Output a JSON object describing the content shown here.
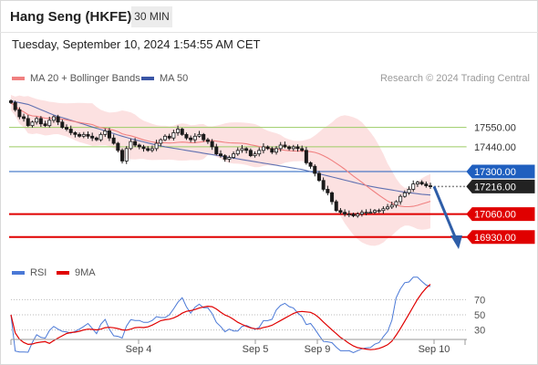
{
  "header": {
    "instrument": "Hang Seng (HKFE)",
    "timeframe": "30 MIN",
    "timestamp": "Tuesday, September 10, 2024 1:54:55 AM CET"
  },
  "legend": {
    "ma20": "MA 20 + Bollinger Bands",
    "ma50": "MA 50",
    "rsi": "RSI",
    "ma9": "9MA",
    "credit": "Research © 2024 Trading Central"
  },
  "colors": {
    "ma20": "#f08080",
    "bollinger_fill": "#fcdcdc",
    "ma50": "#3a55a5",
    "candles": "#1a1a1a",
    "resistance": "#9ccc65",
    "pivot": "#1f5fbf",
    "support": "#e00000",
    "price_tag": "#222222",
    "rsi": "#4a78d6",
    "rsi_ma9": "#e00000",
    "arrow": "#2f5ea8"
  },
  "chart_data": {
    "type": "candlestick",
    "x_tick_labels": [
      "Sep 4",
      "Sep 5",
      "Sep 9",
      "Sep 10"
    ],
    "price_axis": {
      "min": 16800,
      "max": 17780
    },
    "levels": [
      {
        "label": "17550.00",
        "value": 17550,
        "kind": "resistance"
      },
      {
        "label": "17440.00",
        "value": 17440,
        "kind": "resistance"
      },
      {
        "label": "17300.00",
        "value": 17300,
        "kind": "pivot"
      },
      {
        "label": "17216.00",
        "value": 17216,
        "kind": "last"
      },
      {
        "label": "17060.00",
        "value": 17060,
        "kind": "support"
      },
      {
        "label": "16930.00",
        "value": 16930,
        "kind": "support"
      }
    ],
    "close": [
      17690,
      17650,
      17610,
      17600,
      17560,
      17580,
      17600,
      17570,
      17560,
      17590,
      17610,
      17580,
      17550,
      17540,
      17520,
      17510,
      17500,
      17510,
      17500,
      17490,
      17480,
      17510,
      17530,
      17490,
      17460,
      17420,
      17360,
      17430,
      17470,
      17450,
      17440,
      17430,
      17420,
      17430,
      17460,
      17480,
      17500,
      17490,
      17520,
      17540,
      17510,
      17490,
      17480,
      17500,
      17510,
      17480,
      17470,
      17440,
      17400,
      17390,
      17370,
      17380,
      17400,
      17420,
      17430,
      17420,
      17390,
      17400,
      17420,
      17440,
      17430,
      17410,
      17430,
      17450,
      17440,
      17430,
      17440,
      17430,
      17420,
      17350,
      17330,
      17290,
      17250,
      17200,
      17180,
      17130,
      17080,
      17070,
      17060,
      17060,
      17050,
      17060,
      17070,
      17070,
      17070,
      17080,
      17080,
      17090,
      17100,
      17110,
      17130,
      17160,
      17180,
      17200,
      17230,
      17240,
      17230,
      17220,
      17216
    ],
    "ma50": [
      17700,
      17695,
      17690,
      17685,
      17680,
      17670,
      17660,
      17650,
      17640,
      17630,
      17620,
      17612,
      17605,
      17598,
      17590,
      17583,
      17575,
      17568,
      17560,
      17552,
      17545,
      17538,
      17530,
      17522,
      17515,
      17507,
      17500,
      17493,
      17486,
      17480,
      17474,
      17468,
      17462,
      17456,
      17450,
      17445,
      17440,
      17436,
      17432,
      17428,
      17424,
      17420,
      17416,
      17412,
      17408,
      17404,
      17400,
      17396,
      17392,
      17388,
      17384,
      17380,
      17376,
      17372,
      17368,
      17364,
      17360,
      17356,
      17352,
      17348,
      17344,
      17340,
      17336,
      17332,
      17328,
      17324,
      17320,
      17316,
      17312,
      17306,
      17300,
      17294,
      17288,
      17282,
      17276,
      17270,
      17264,
      17258,
      17252,
      17246,
      17240,
      17234,
      17228,
      17222,
      17217,
      17212,
      17208,
      17204,
      17200,
      17196,
      17192,
      17188,
      17184,
      17181,
      17178,
      17175,
      17172,
      17170,
      17168
    ],
    "rsi": {
      "axis_ticks": [
        70,
        50,
        30
      ],
      "min": 20,
      "max": 80
    }
  }
}
